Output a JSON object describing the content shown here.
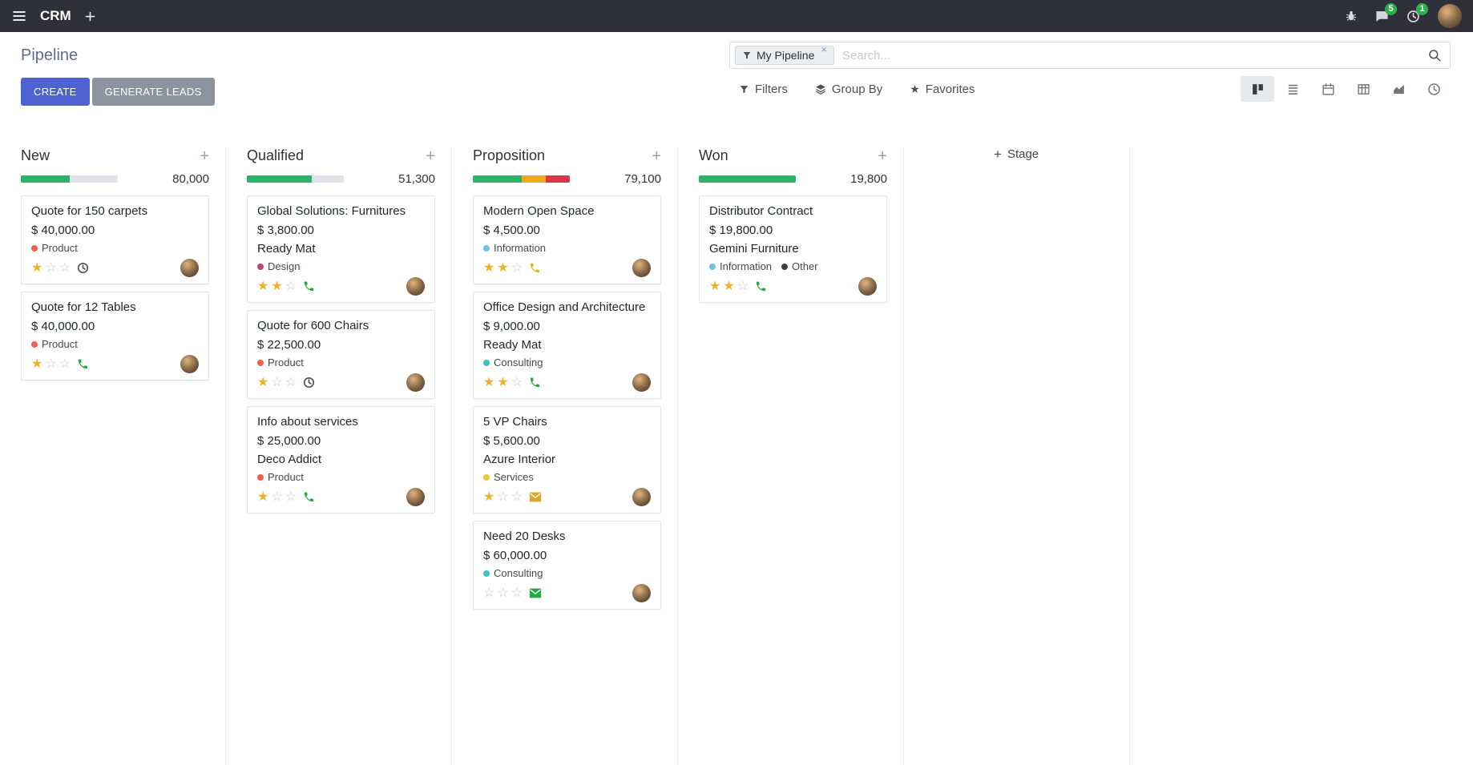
{
  "colors": {
    "primary": "#4e63d0",
    "secondary": "#8d939e",
    "topbar_bg": "#30303a",
    "title": "#5f6c8f",
    "badge": "#2fae4e",
    "star_filled": "#f0b123",
    "star_empty": "#c3c9cf"
  },
  "icons": {
    "plus": "+",
    "close": "×",
    "star_filled": "★",
    "star_empty": "☆",
    "favorites_star": "★"
  },
  "topbar": {
    "app_name": "CRM",
    "badges": {
      "messages": "5",
      "activities": "1"
    }
  },
  "control_panel": {
    "title": "Pipeline",
    "create_label": "CREATE",
    "generate_leads_label": "GENERATE LEADS",
    "filters_label": "Filters",
    "group_by_label": "Group By",
    "favorites_label": "Favorites",
    "search": {
      "facet": "My Pipeline",
      "placeholder": "Search..."
    }
  },
  "kanban": {
    "add_stage_label": "Stage",
    "columns": [
      {
        "name": "New",
        "total": "80,000",
        "progress": [
          {
            "color": "#2bb36a",
            "pct": 50
          },
          {
            "color": "#dfe2e6",
            "pct": 50
          }
        ],
        "cards": [
          {
            "title": "Quote for 150 carpets",
            "amount": "$ 40,000.00",
            "tags": [
              {
                "label": "Product",
                "color": "#f06050"
              }
            ],
            "stars": 1,
            "activity": {
              "type": "clock",
              "color": "#495057"
            }
          },
          {
            "title": "Quote for 12 Tables",
            "amount": "$ 40,000.00",
            "tags": [
              {
                "label": "Product",
                "color": "#f06050"
              }
            ],
            "stars": 1,
            "activity": {
              "type": "phone",
              "color": "#28a745"
            }
          }
        ]
      },
      {
        "name": "Qualified",
        "total": "51,300",
        "progress": [
          {
            "color": "#2bb36a",
            "pct": 67
          },
          {
            "color": "#dfe2e6",
            "pct": 33
          }
        ],
        "cards": [
          {
            "title": "Global Solutions: Furnitures",
            "amount": "$ 3,800.00",
            "partner": "Ready Mat",
            "tags": [
              {
                "label": "Design",
                "color": "#c04088"
              }
            ],
            "stars": 2,
            "activity": {
              "type": "phone",
              "color": "#28a745"
            }
          },
          {
            "title": "Quote for 600 Chairs",
            "amount": "$ 22,500.00",
            "tags": [
              {
                "label": "Product",
                "color": "#f06050"
              }
            ],
            "stars": 1,
            "activity": {
              "type": "clock",
              "color": "#495057"
            }
          },
          {
            "title": "Info about services",
            "amount": "$ 25,000.00",
            "partner": "Deco Addict",
            "tags": [
              {
                "label": "Product",
                "color": "#f06050"
              }
            ],
            "stars": 1,
            "activity": {
              "type": "phone",
              "color": "#28a745"
            }
          }
        ]
      },
      {
        "name": "Proposition",
        "total": "79,100",
        "progress": [
          {
            "color": "#2bb36a",
            "pct": 50
          },
          {
            "color": "#eea818",
            "pct": 25
          },
          {
            "color": "#dc3545",
            "pct": 25
          }
        ],
        "cards": [
          {
            "title": "Modern Open Space",
            "amount": "$ 4,500.00",
            "tags": [
              {
                "label": "Information",
                "color": "#6cc1ed"
              }
            ],
            "stars": 2,
            "activity": {
              "type": "phone",
              "color": "#e6b415"
            }
          },
          {
            "title": "Office Design and Architecture",
            "amount": "$ 9,000.00",
            "partner": "Ready Mat",
            "tags": [
              {
                "label": "Consulting",
                "color": "#3bc1c9"
              }
            ],
            "stars": 2,
            "activity": {
              "type": "phone",
              "color": "#28a745"
            }
          },
          {
            "title": "5 VP Chairs",
            "amount": "$ 5,600.00",
            "partner": "Azure Interior",
            "tags": [
              {
                "label": "Services",
                "color": "#ebc83d"
              }
            ],
            "stars": 1,
            "activity": {
              "type": "mail",
              "color": "#d9a82b"
            }
          },
          {
            "title": "Need 20 Desks",
            "amount": "$ 60,000.00",
            "tags": [
              {
                "label": "Consulting",
                "color": "#3bc1c9"
              }
            ],
            "stars": 0,
            "activity": {
              "type": "mail",
              "color": "#28a745"
            }
          }
        ]
      },
      {
        "name": "Won",
        "total": "19,800",
        "progress": [
          {
            "color": "#2bb36a",
            "pct": 100
          }
        ],
        "cards": [
          {
            "title": "Distributor Contract",
            "amount": "$ 19,800.00",
            "partner": "Gemini Furniture",
            "tags": [
              {
                "label": "Information",
                "color": "#6cc1ed"
              },
              {
                "label": "Other",
                "color": "#3a4047"
              }
            ],
            "stars": 2,
            "activity": {
              "type": "phone",
              "color": "#28a745"
            }
          }
        ]
      }
    ]
  }
}
